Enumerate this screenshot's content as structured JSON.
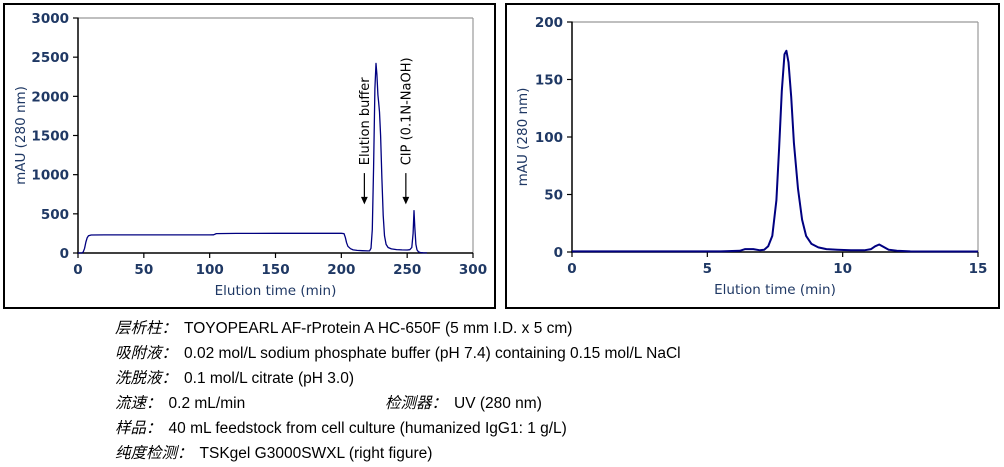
{
  "chart_data": [
    {
      "type": "line",
      "name": "affinity-chromatogram",
      "xlabel": "Elution time (min)",
      "ylabel": "mAU (280 nm)",
      "xlim": [
        0,
        300
      ],
      "ylim": [
        0,
        3000
      ],
      "xticks": [
        0,
        50,
        100,
        150,
        200,
        250,
        300
      ],
      "yticks": [
        0,
        500,
        1000,
        1500,
        2000,
        2500,
        3000
      ],
      "grid": false,
      "legend": "none",
      "line_color": "#000080",
      "line_width": 1.3,
      "series": [
        {
          "name": "UV 280 nm",
          "points": [
            [
              0,
              0
            ],
            [
              3,
              0
            ],
            [
              4,
              15
            ],
            [
              5,
              60
            ],
            [
              6,
              140
            ],
            [
              7,
              195
            ],
            [
              8,
              220
            ],
            [
              10,
              230
            ],
            [
              20,
              231
            ],
            [
              50,
              231
            ],
            [
              80,
              231
            ],
            [
              100,
              231
            ],
            [
              103,
              232
            ],
            [
              105,
              248
            ],
            [
              120,
              250
            ],
            [
              150,
              251
            ],
            [
              180,
              251
            ],
            [
              200,
              251
            ],
            [
              202,
              248
            ],
            [
              203,
              200
            ],
            [
              204,
              130
            ],
            [
              205,
              85
            ],
            [
              207,
              55
            ],
            [
              209,
              40
            ],
            [
              212,
              33
            ],
            [
              216,
              30
            ],
            [
              220,
              27
            ],
            [
              221.5,
              28
            ],
            [
              222.5,
              60
            ],
            [
              223.5,
              300
            ],
            [
              224.5,
              1100
            ],
            [
              225.5,
              2100
            ],
            [
              226.3,
              2420
            ],
            [
              227,
              2280
            ],
            [
              227.8,
              2020
            ],
            [
              228.3,
              1930
            ],
            [
              229,
              1800
            ],
            [
              229.8,
              1500
            ],
            [
              230.8,
              950
            ],
            [
              231.8,
              480
            ],
            [
              232.8,
              220
            ],
            [
              234,
              110
            ],
            [
              235.5,
              70
            ],
            [
              238,
              52
            ],
            [
              242,
              44
            ],
            [
              246,
              40
            ],
            [
              250,
              38
            ],
            [
              252,
              42
            ],
            [
              253.5,
              70
            ],
            [
              254.5,
              250
            ],
            [
              255.2,
              540
            ],
            [
              255.8,
              330
            ],
            [
              256.6,
              110
            ],
            [
              257.5,
              40
            ],
            [
              258.5,
              15
            ],
            [
              260,
              6
            ],
            [
              262,
              2
            ],
            [
              265,
              1
            ]
          ]
        }
      ],
      "annotations": [
        {
          "text": "Elution buffer",
          "x": 217.5,
          "arrow_from": 1020,
          "arrow_to": 620,
          "text_from": 1120
        },
        {
          "text": "CIP (0.1N-NaOH)",
          "x": 249,
          "arrow_from": 1020,
          "arrow_to": 620,
          "text_from": 1120
        }
      ]
    },
    {
      "type": "line",
      "name": "purity-check-chromatogram",
      "xlabel": "Elution time (min)",
      "ylabel": "mAU (280 nm)",
      "xlim": [
        0,
        15
      ],
      "ylim": [
        0,
        200
      ],
      "xticks": [
        0,
        5,
        10,
        15
      ],
      "yticks": [
        0,
        50,
        100,
        150,
        200
      ],
      "grid": false,
      "legend": "none",
      "line_color": "#000080",
      "line_width": 2,
      "series": [
        {
          "name": "UV 280 nm",
          "points": [
            [
              0,
              0.5
            ],
            [
              2,
              0.5
            ],
            [
              4,
              0.5
            ],
            [
              5.5,
              0.5
            ],
            [
              6.2,
              1
            ],
            [
              6.4,
              2.5
            ],
            [
              6.7,
              2.5
            ],
            [
              6.95,
              1.5
            ],
            [
              7.1,
              2
            ],
            [
              7.25,
              5
            ],
            [
              7.4,
              14
            ],
            [
              7.55,
              45
            ],
            [
              7.65,
              90
            ],
            [
              7.75,
              140
            ],
            [
              7.85,
              172
            ],
            [
              7.92,
              175
            ],
            [
              8.0,
              165
            ],
            [
              8.1,
              135
            ],
            [
              8.2,
              95
            ],
            [
              8.35,
              55
            ],
            [
              8.5,
              28
            ],
            [
              8.65,
              14
            ],
            [
              8.85,
              7
            ],
            [
              9.1,
              4
            ],
            [
              9.4,
              2.5
            ],
            [
              9.8,
              2
            ],
            [
              10.3,
              1.5
            ],
            [
              10.8,
              1.5
            ],
            [
              11.05,
              2.5
            ],
            [
              11.2,
              5
            ],
            [
              11.35,
              6.5
            ],
            [
              11.5,
              4.5
            ],
            [
              11.7,
              2
            ],
            [
              12,
              1
            ],
            [
              12.5,
              0.5
            ],
            [
              13.5,
              0.4
            ],
            [
              15,
              0.4
            ]
          ]
        }
      ],
      "annotations": []
    }
  ],
  "colors": {
    "line": "#000080",
    "tick_label": "#1f3864",
    "axis": "#000000",
    "plot_border": "#999999",
    "annotation": "#000000"
  },
  "notes": [
    {
      "items": [
        {
          "label": "层析柱：",
          "text": "TOYOPEARL AF-rProtein A HC-650F (5 mm I.D. x 5 cm)"
        }
      ]
    },
    {
      "items": [
        {
          "label": "吸附液：",
          "text": "0.02 mol/L sodium phosphate buffer (pH 7.4) containing 0.15 mol/L NaCl"
        }
      ]
    },
    {
      "items": [
        {
          "label": "洗脱液：",
          "text": "0.1 mol/L citrate (pH 3.0)"
        }
      ]
    },
    {
      "items": [
        {
          "label": "流速：",
          "text": "0.2 mL/min"
        },
        {
          "label": "检测器：",
          "text": "UV (280 nm)"
        }
      ]
    },
    {
      "items": [
        {
          "label": "样品：",
          "text": "40 mL feedstock from cell culture (humanized IgG1: 1 g/L)"
        }
      ]
    },
    {
      "items": [
        {
          "label": "纯度检测：",
          "text": "TSKgel G3000SWXL (right figure)"
        }
      ]
    }
  ]
}
